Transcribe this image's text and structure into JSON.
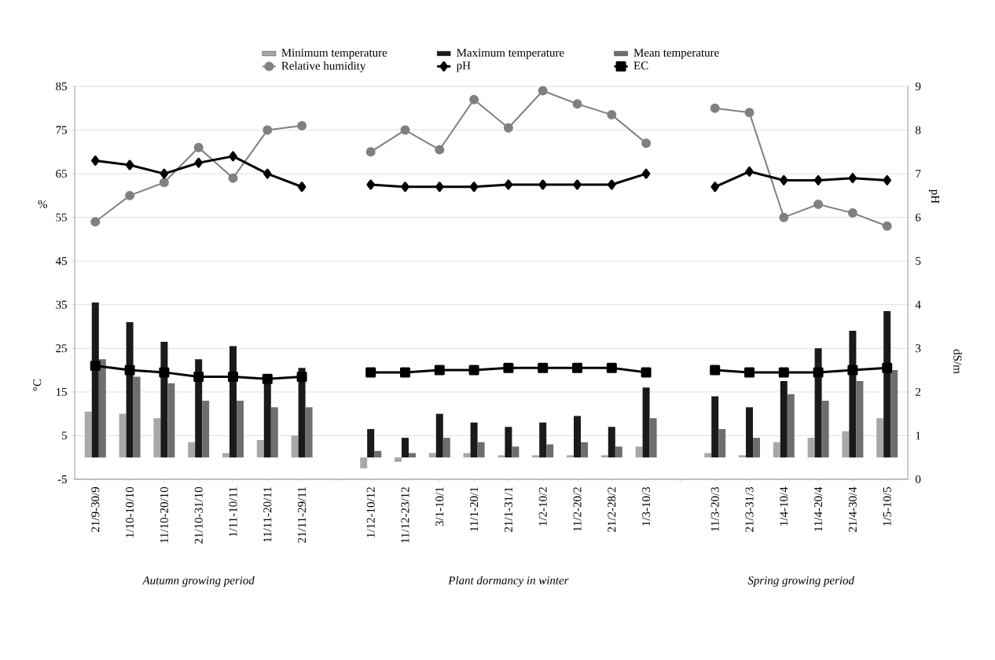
{
  "chart_data": {
    "type": "bar",
    "categories": [
      "21/9-30/9",
      "1/10-10/10",
      "11/10-20/10",
      "21/10-31/10",
      "1/11-10/11",
      "11/11-20/11",
      "21/11-29/11",
      null,
      "1/12-10/12",
      "11/12-23/12",
      "3/1-10/1",
      "11/1-20/1",
      "21/1-31/1",
      "1/2-10/2",
      "11/2-20/2",
      "21/2-28/2",
      "1/3-10/3",
      null,
      "11/3-20/3",
      "21/3-31/3",
      "1/4-10/4",
      "11/4-20/4",
      "21/4-30/4",
      "1/5-10/5"
    ],
    "series": [
      {
        "name": "Minimum temperature",
        "color": "#a8a8a8",
        "values": [
          10.5,
          10,
          9,
          3.5,
          1,
          4,
          5,
          null,
          -2.5,
          -1,
          1,
          1,
          0.5,
          0.5,
          0.5,
          0.5,
          2.5,
          null,
          1,
          0.5,
          3.5,
          4.5,
          6,
          9
        ]
      },
      {
        "name": "Maximum temperature",
        "color": "#1a1a1a",
        "values": [
          35.5,
          31,
          26.5,
          22.5,
          25.5,
          17.5,
          20.5,
          null,
          6.5,
          4.5,
          10,
          8,
          7,
          8,
          9.5,
          7,
          16,
          null,
          14,
          11.5,
          17.5,
          25,
          29,
          33.5
        ]
      },
      {
        "name": "Mean temperature",
        "color": "#6e6e6e",
        "values": [
          22.5,
          18.5,
          17,
          13,
          13,
          11.5,
          11.5,
          null,
          1.5,
          1,
          4.5,
          3.5,
          2.5,
          3,
          3.5,
          2.5,
          9,
          null,
          6.5,
          4.5,
          14.5,
          13,
          17.5,
          20
        ]
      },
      {
        "name": "Relative humidity",
        "type": "line",
        "color": "#808080",
        "marker": "circle",
        "values": [
          54,
          60,
          63,
          71,
          64,
          75,
          76,
          null,
          70,
          75,
          70.5,
          82,
          75.5,
          84,
          81,
          78.5,
          72,
          null,
          80,
          79,
          55,
          58,
          56,
          53
        ]
      },
      {
        "name": "pH",
        "type": "line",
        "axis": "y2",
        "color": "#000000",
        "marker": "diamond",
        "values": [
          7.3,
          7.2,
          7.0,
          7.25,
          7.4,
          7.0,
          6.7,
          null,
          6.75,
          6.7,
          6.7,
          6.7,
          6.75,
          6.75,
          6.75,
          6.75,
          7.0,
          null,
          6.7,
          7.05,
          6.85,
          6.85,
          6.9,
          6.85
        ]
      },
      {
        "name": "EC",
        "type": "line",
        "axis": "y2",
        "color": "#000000",
        "marker": "square",
        "values": [
          2.6,
          2.5,
          2.45,
          2.35,
          2.35,
          2.3,
          2.35,
          null,
          2.45,
          2.45,
          2.5,
          2.5,
          2.55,
          2.55,
          2.55,
          2.55,
          2.45,
          null,
          2.5,
          2.45,
          2.45,
          2.45,
          2.5,
          2.55
        ]
      }
    ],
    "ylabel": "%",
    "y2label": "pH",
    "annotations": [
      "°C",
      "dS/m",
      "Autumn growing period",
      "Plant dormancy in winter",
      "Spring growing period"
    ],
    "ylim": [
      -5,
      85
    ],
    "yticks": [
      -5,
      5,
      15,
      25,
      35,
      45,
      55,
      65,
      75,
      85
    ],
    "y2lim": [
      0,
      9
    ],
    "y2ticks": [
      0,
      1,
      2,
      3,
      4,
      5,
      6,
      7,
      8,
      9
    ],
    "grid": "y",
    "legend": "top"
  }
}
